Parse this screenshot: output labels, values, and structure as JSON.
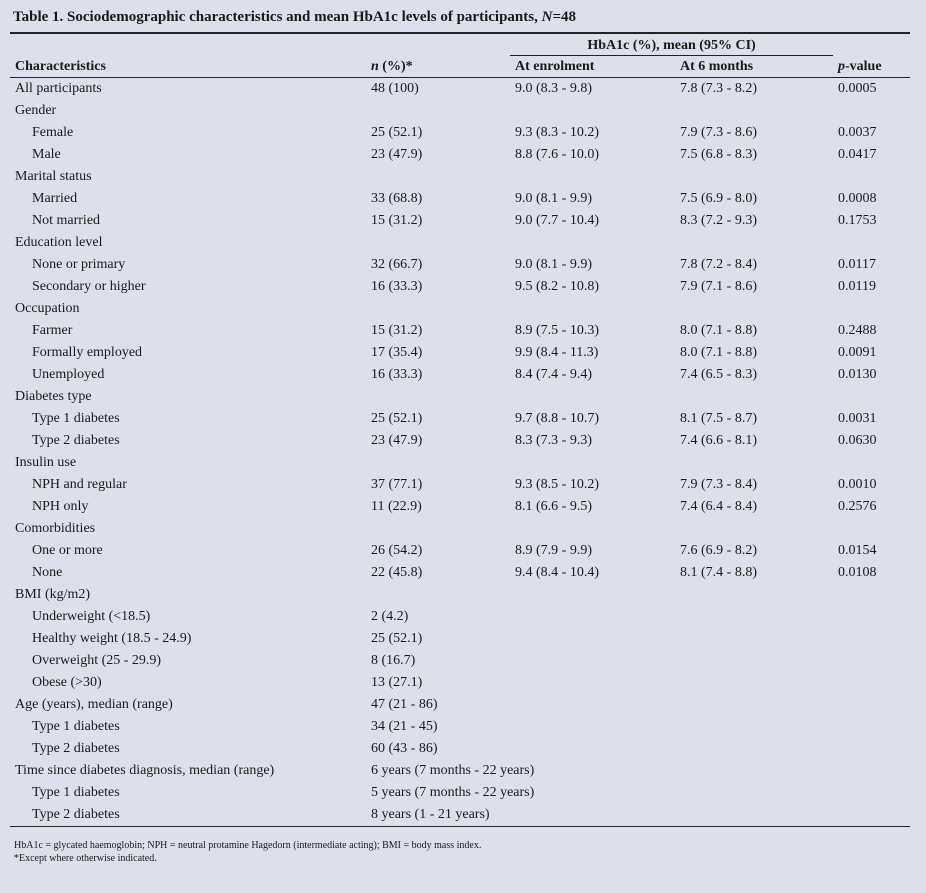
{
  "title": {
    "text": "Table 1. Sociodemographic characteristics and mean HbA1c levels of participants, ",
    "italic": "N",
    "rest": "=48"
  },
  "header": {
    "group": "HbA1c (%), mean (95% CI)",
    "columns": [
      "Characteristics",
      "n (%)*",
      "At enrolment",
      "At 6 months",
      "p-value"
    ]
  },
  "table": {
    "rows": [
      {
        "level": 0,
        "cells": [
          "All participants",
          "48 (100)",
          "9.0 (8.3 - 9.8)",
          "7.8 (7.3 - 8.2)",
          "0.0005"
        ]
      },
      {
        "level": 0,
        "cells": [
          "Gender"
        ]
      },
      {
        "level": 1,
        "cells": [
          "Female",
          "25 (52.1)",
          "9.3 (8.3 - 10.2)",
          "7.9 (7.3 - 8.6)",
          "0.0037"
        ]
      },
      {
        "level": 1,
        "cells": [
          "Male",
          "23 (47.9)",
          "8.8 (7.6 - 10.0)",
          "7.5 (6.8 - 8.3)",
          "0.0417"
        ]
      },
      {
        "level": 0,
        "cells": [
          "Marital status"
        ]
      },
      {
        "level": 1,
        "cells": [
          "Married",
          "33 (68.8)",
          "9.0 (8.1 - 9.9)",
          "7.5 (6.9 - 8.0)",
          "0.0008"
        ]
      },
      {
        "level": 1,
        "cells": [
          "Not married",
          "15 (31.2)",
          "9.0 (7.7 - 10.4)",
          "8.3 (7.2 - 9.3)",
          "0.1753"
        ]
      },
      {
        "level": 0,
        "cells": [
          "Education level"
        ]
      },
      {
        "level": 1,
        "cells": [
          "None or primary",
          "32 (66.7)",
          "9.0 (8.1 - 9.9)",
          "7.8 (7.2 - 8.4)",
          "0.0117"
        ]
      },
      {
        "level": 1,
        "cells": [
          "Secondary or higher",
          "16 (33.3)",
          "9.5 (8.2 - 10.8)",
          "7.9 (7.1 - 8.6)",
          "0.0119"
        ]
      },
      {
        "level": 0,
        "cells": [
          "Occupation"
        ]
      },
      {
        "level": 1,
        "cells": [
          "Farmer",
          "15 (31.2)",
          "8.9 (7.5 - 10.3)",
          "8.0 (7.1 - 8.8)",
          "0.2488"
        ]
      },
      {
        "level": 1,
        "cells": [
          "Formally employed",
          "17 (35.4)",
          "9.9 (8.4 - 11.3)",
          "8.0 (7.1 - 8.8)",
          "0.0091"
        ]
      },
      {
        "level": 1,
        "cells": [
          "Unemployed",
          "16 (33.3)",
          "8.4 (7.4 - 9.4)",
          "7.4 (6.5 - 8.3)",
          "0.0130"
        ]
      },
      {
        "level": 0,
        "cells": [
          "Diabetes type"
        ]
      },
      {
        "level": 1,
        "cells": [
          "Type 1 diabetes",
          "25 (52.1)",
          "9.7 (8.8 - 10.7)",
          "8.1 (7.5 - 8.7)",
          "0.0031"
        ]
      },
      {
        "level": 1,
        "cells": [
          "Type 2 diabetes",
          "23 (47.9)",
          "8.3 (7.3 - 9.3)",
          "7.4 (6.6 - 8.1)",
          "0.0630"
        ]
      },
      {
        "level": 0,
        "cells": [
          "Insulin use"
        ]
      },
      {
        "level": 1,
        "cells": [
          "NPH and regular",
          "37 (77.1)",
          "9.3 (8.5 - 10.2)",
          "7.9 (7.3 - 8.4)",
          "0.0010"
        ]
      },
      {
        "level": 1,
        "cells": [
          "NPH only",
          "11 (22.9)",
          "8.1 (6.6 - 9.5)",
          "7.4 (6.4 - 8.4)",
          "0.2576"
        ]
      },
      {
        "level": 0,
        "cells": [
          "Comorbidities"
        ]
      },
      {
        "level": 1,
        "cells": [
          "One or more",
          "26 (54.2)",
          "8.9 (7.9 - 9.9)",
          "7.6 (6.9 - 8.2)",
          "0.0154"
        ]
      },
      {
        "level": 1,
        "cells": [
          "None",
          "22 (45.8)",
          "9.4 (8.4 - 10.4)",
          "8.1 (7.4 - 8.8)",
          "0.0108"
        ]
      },
      {
        "level": 0,
        "cells": [
          "BMI (kg/m2)"
        ]
      },
      {
        "level": 1,
        "cells": [
          "Underweight (<18.5)",
          "2 (4.2)"
        ]
      },
      {
        "level": 1,
        "cells": [
          "Healthy weight (18.5 - 24.9)",
          "25 (52.1)"
        ]
      },
      {
        "level": 1,
        "cells": [
          "Overweight (25 - 29.9)",
          "8 (16.7)"
        ]
      },
      {
        "level": 1,
        "cells": [
          "Obese (>30)",
          "13 (27.1)"
        ]
      },
      {
        "level": 0,
        "cells": [
          "Age (years), median (range)",
          "47 (21 - 86)"
        ]
      },
      {
        "level": 1,
        "cells": [
          "Type 1 diabetes",
          "34 (21 - 45)"
        ]
      },
      {
        "level": 1,
        "cells": [
          "Type 2 diabetes",
          "60 (43 - 86)"
        ]
      },
      {
        "level": 0,
        "cells": [
          "Time since diabetes diagnosis, median (range)",
          "6 years (7 months - 22 years)"
        ]
      },
      {
        "level": 1,
        "cells": [
          "Type 1 diabetes",
          "5 years (7 months - 22 years)"
        ]
      },
      {
        "level": 1,
        "cells": [
          "Type 2 diabetes",
          "8 years (1 - 21 years)"
        ]
      }
    ]
  },
  "footnotes": [
    "HbA1c = glycated haemoglobin; NPH = neutral protamine Hagedorn (intermediate acting); BMI = body mass index.",
    "*Except where otherwise indicated."
  ]
}
